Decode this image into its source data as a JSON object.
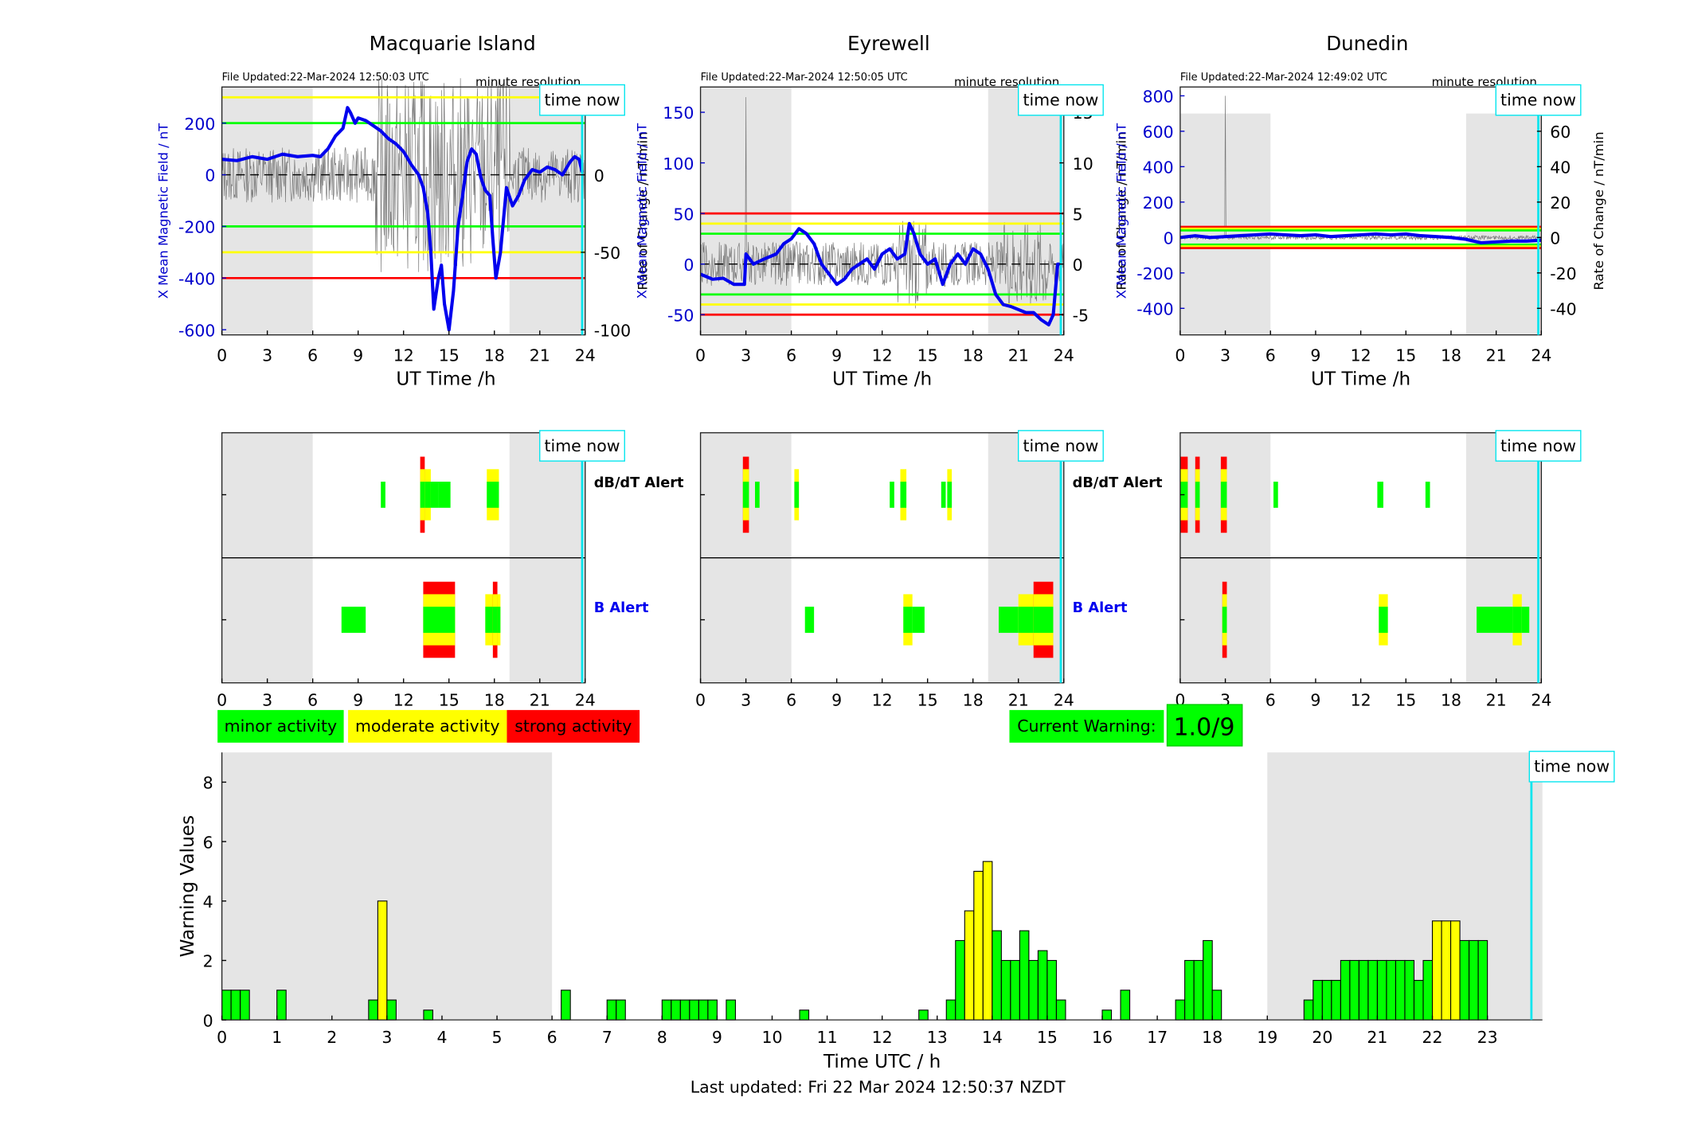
{
  "chart_data": [
    {
      "type": "line",
      "panel": "magnetic-field",
      "title": "Macquarie Island",
      "file_updated": "File Updated:22-Mar-2024 12:50:03 UTC",
      "resolution_label": "minute resolution",
      "time_now_label": "time now",
      "xlabel": "UT Time /h",
      "ylabel_left": "X Mean Magnetic Field / nT",
      "ylabel_right": "Rate of Change / nT/min",
      "xlim": [
        0,
        24
      ],
      "xticks": [
        0,
        3,
        6,
        9,
        12,
        15,
        18,
        21,
        24
      ],
      "ylim_left": [
        -620,
        340
      ],
      "yticks_left": [
        -600,
        -400,
        -200,
        0,
        200
      ],
      "ylim_right": [
        -103.3,
        56.7
      ],
      "yticks_right": [
        -100,
        -50,
        0,
        50
      ],
      "night_shading": [
        [
          0,
          6
        ],
        [
          19,
          24
        ]
      ],
      "time_now": 23.8,
      "thresholds": [
        {
          "value": 300,
          "color": "#ffff00"
        },
        {
          "value": 200,
          "color": "#00ff00"
        },
        {
          "value": -200,
          "color": "#00ff00"
        },
        {
          "value": -300,
          "color": "#ffff00"
        },
        {
          "value": -400,
          "color": "#ff0000"
        }
      ],
      "series": [
        {
          "x": [
            0,
            1,
            2,
            3,
            4,
            5,
            6,
            6.5,
            7,
            7.5,
            8,
            8.3,
            8.5,
            8.8,
            9,
            9.5,
            10,
            10.5,
            11,
            11.5,
            12,
            12.5,
            13,
            13.3,
            13.6,
            13.8,
            14,
            14.3,
            14.5,
            14.7,
            15,
            15.3,
            15.6,
            15.9,
            16.2,
            16.5,
            16.8,
            17.1,
            17.4,
            17.7,
            17.9,
            18.1,
            18.4,
            18.8,
            19.2,
            19.6,
            20,
            20.5,
            21,
            21.5,
            22,
            22.5,
            23,
            23.3,
            23.6,
            23.8
          ],
          "values": [
            60,
            55,
            70,
            60,
            80,
            70,
            75,
            70,
            100,
            150,
            180,
            260,
            240,
            200,
            220,
            210,
            190,
            170,
            140,
            120,
            90,
            40,
            0,
            -50,
            -150,
            -300,
            -520,
            -400,
            -350,
            -500,
            -600,
            -450,
            -200,
            -80,
            50,
            100,
            80,
            -10,
            -60,
            -80,
            -250,
            -400,
            -300,
            -50,
            -120,
            -80,
            -20,
            20,
            10,
            30,
            20,
            0,
            50,
            70,
            60,
            10
          ],
          "color": "#0000ee"
        }
      ]
    },
    {
      "type": "line",
      "panel": "magnetic-field",
      "title": "Eyrewell",
      "file_updated": "File Updated:22-Mar-2024 12:50:05 UTC",
      "resolution_label": "minute resolution",
      "time_now_label": "time now",
      "xlabel": "UT Time /h",
      "ylabel_left": "X Mean Magnetic Field / nT",
      "ylabel_right": "Rate of Change / nT/min",
      "xlim": [
        0,
        24
      ],
      "xticks": [
        0,
        3,
        6,
        9,
        12,
        15,
        18,
        21,
        24
      ],
      "ylim_left": [
        -70,
        175
      ],
      "yticks_left": [
        -50,
        0,
        50,
        100,
        150
      ],
      "ylim_right": [
        -7,
        17.5
      ],
      "yticks_right": [
        -5,
        0,
        5,
        10,
        15
      ],
      "night_shading": [
        [
          0,
          6
        ],
        [
          19,
          24
        ]
      ],
      "time_now": 23.8,
      "thresholds": [
        {
          "value": 50,
          "color": "#ff0000"
        },
        {
          "value": 40,
          "color": "#ffff00"
        },
        {
          "value": 30,
          "color": "#00ff00"
        },
        {
          "value": -30,
          "color": "#00ff00"
        },
        {
          "value": -40,
          "color": "#ffff00"
        },
        {
          "value": -50,
          "color": "#ff0000"
        }
      ],
      "series": [
        {
          "x": [
            0,
            0.8,
            1.5,
            2.2,
            2.9,
            3.0,
            3.5,
            4.2,
            5,
            5.5,
            6,
            6.5,
            7,
            7.5,
            8,
            8.5,
            9,
            9.5,
            10,
            10.5,
            11,
            11.5,
            12,
            12.5,
            13,
            13.5,
            13.8,
            14.1,
            14.5,
            15,
            15.5,
            16,
            16.5,
            17,
            17.5,
            18,
            18.5,
            19,
            19.5,
            20,
            20.5,
            21,
            21.5,
            22,
            22.5,
            23,
            23.3,
            23.6,
            23.8
          ],
          "values": [
            -10,
            -15,
            -14,
            -20,
            -20,
            10,
            0,
            5,
            10,
            20,
            25,
            35,
            30,
            20,
            0,
            -10,
            -20,
            -15,
            -5,
            0,
            5,
            -5,
            10,
            15,
            5,
            10,
            40,
            30,
            10,
            0,
            5,
            -20,
            0,
            10,
            0,
            15,
            10,
            -5,
            -30,
            -40,
            -42,
            -45,
            -48,
            -48,
            -55,
            -60,
            -50,
            0,
            0
          ],
          "color": "#0000ee"
        }
      ]
    },
    {
      "type": "line",
      "panel": "magnetic-field",
      "title": "Dunedin",
      "file_updated": "File Updated:22-Mar-2024 12:49:02 UTC",
      "resolution_label": "minute resolution",
      "time_now_label": "time now",
      "xlabel": "UT Time /h",
      "ylabel_left": "X Mean Magnetic Field / nT",
      "ylabel_right": "Rate of Change / nT/min",
      "xlim": [
        0,
        24
      ],
      "xticks": [
        0,
        3,
        6,
        9,
        12,
        15,
        18,
        21,
        24
      ],
      "ylim_left": [
        -550,
        850
      ],
      "yticks_left": [
        -400,
        -200,
        0,
        200,
        400,
        600,
        800
      ],
      "ylim_right": [
        -55,
        85
      ],
      "yticks_right": [
        -40,
        -20,
        0,
        20,
        40,
        60,
        80
      ],
      "night_shading": [
        [
          0,
          6
        ],
        [
          19,
          24
        ]
      ],
      "time_now": 23.8,
      "thresholds": [
        {
          "value": 60,
          "color": "#ff0000"
        },
        {
          "value": 50,
          "color": "#ffff00"
        },
        {
          "value": 40,
          "color": "#00ff00"
        },
        {
          "value": -40,
          "color": "#00ff00"
        },
        {
          "value": -50,
          "color": "#ffff00"
        },
        {
          "value": -60,
          "color": "#ff0000"
        }
      ],
      "series": [
        {
          "x": [
            0,
            1,
            2,
            3,
            4,
            5,
            6,
            7,
            8,
            9,
            10,
            11,
            12,
            13,
            14,
            15,
            16,
            17,
            18,
            19,
            20,
            21,
            22,
            23,
            24
          ],
          "values": [
            0,
            10,
            0,
            5,
            10,
            15,
            20,
            15,
            10,
            15,
            5,
            10,
            15,
            20,
            15,
            20,
            10,
            5,
            0,
            -10,
            -30,
            -25,
            -20,
            -20,
            -15
          ],
          "color": "#0000ee"
        }
      ]
    },
    {
      "type": "bar",
      "panel": "alerts",
      "station": "Macquarie Island",
      "time_now_label": "time now",
      "xlim": [
        0,
        24
      ],
      "xticks": [
        0,
        3,
        6,
        9,
        12,
        15,
        18,
        21,
        24
      ],
      "night_shading": [
        [
          0,
          6
        ],
        [
          19,
          24
        ]
      ],
      "time_now": 23.8,
      "row_labels": [
        "dB/dT Alert",
        "B Alert"
      ],
      "row_label_colors": [
        "#000000",
        "#0000ee"
      ],
      "dbdt_alerts": [
        {
          "t0": 10.5,
          "t1": 10.8,
          "level": 1
        },
        {
          "t0": 13.1,
          "t1": 13.4,
          "level": 3
        },
        {
          "t0": 13.4,
          "t1": 13.8,
          "level": 2
        },
        {
          "t0": 13.8,
          "t1": 14.3,
          "level": 1
        },
        {
          "t0": 14.3,
          "t1": 15.1,
          "level": 1
        },
        {
          "t0": 17.5,
          "t1": 18.3,
          "level": 2
        }
      ],
      "b_alerts": [
        {
          "t0": 7.9,
          "t1": 9.5,
          "level": 1
        },
        {
          "t0": 13.3,
          "t1": 15.4,
          "level": 3
        },
        {
          "t0": 17.4,
          "t1": 18.4,
          "level": 2
        },
        {
          "t0": 17.9,
          "t1": 18.2,
          "level": 3
        }
      ]
    },
    {
      "type": "bar",
      "panel": "alerts",
      "station": "Eyrewell",
      "time_now_label": "time now",
      "xlim": [
        0,
        24
      ],
      "xticks": [
        0,
        3,
        6,
        9,
        12,
        15,
        18,
        21,
        24
      ],
      "night_shading": [
        [
          0,
          6
        ],
        [
          19,
          24
        ]
      ],
      "time_now": 23.8,
      "row_labels": [
        "dB/dT Alert",
        "B Alert"
      ],
      "row_label_colors": [
        "#000000",
        "#0000ee"
      ],
      "dbdt_alerts": [
        {
          "t0": 2.8,
          "t1": 3.2,
          "level": 3
        },
        {
          "t0": 3.6,
          "t1": 3.9,
          "level": 1
        },
        {
          "t0": 6.2,
          "t1": 6.5,
          "level": 2
        },
        {
          "t0": 12.5,
          "t1": 12.8,
          "level": 1
        },
        {
          "t0": 13.2,
          "t1": 13.6,
          "level": 2
        },
        {
          "t0": 15.9,
          "t1": 16.2,
          "level": 1
        },
        {
          "t0": 16.3,
          "t1": 16.6,
          "level": 2
        }
      ],
      "b_alerts": [
        {
          "t0": 6.9,
          "t1": 7.5,
          "level": 1
        },
        {
          "t0": 13.4,
          "t1": 14.0,
          "level": 2
        },
        {
          "t0": 14.0,
          "t1": 14.8,
          "level": 1
        },
        {
          "t0": 19.7,
          "t1": 21.0,
          "level": 1
        },
        {
          "t0": 21.0,
          "t1": 22.0,
          "level": 2
        },
        {
          "t0": 22.0,
          "t1": 23.3,
          "level": 3
        }
      ]
    },
    {
      "type": "bar",
      "panel": "alerts",
      "station": "Dunedin",
      "time_now_label": "time now",
      "xlim": [
        0,
        24
      ],
      "xticks": [
        0,
        3,
        6,
        9,
        12,
        15,
        18,
        21,
        24
      ],
      "night_shading": [
        [
          0,
          6
        ],
        [
          19,
          24
        ]
      ],
      "time_now": 23.8,
      "row_labels": [],
      "row_label_colors": [],
      "dbdt_alerts": [
        {
          "t0": 0.0,
          "t1": 0.5,
          "level": 3
        },
        {
          "t0": 1.0,
          "t1": 1.3,
          "level": 3
        },
        {
          "t0": 2.7,
          "t1": 3.1,
          "level": 3
        },
        {
          "t0": 6.2,
          "t1": 6.5,
          "level": 1
        },
        {
          "t0": 13.1,
          "t1": 13.5,
          "level": 1
        },
        {
          "t0": 16.3,
          "t1": 16.6,
          "level": 1
        }
      ],
      "b_alerts": [
        {
          "t0": 2.8,
          "t1": 3.1,
          "level": 3
        },
        {
          "t0": 13.2,
          "t1": 13.8,
          "level": 2
        },
        {
          "t0": 19.7,
          "t1": 22.1,
          "level": 1
        },
        {
          "t0": 22.1,
          "t1": 22.7,
          "level": 2
        },
        {
          "t0": 22.7,
          "t1": 23.2,
          "level": 1
        }
      ]
    },
    {
      "type": "bar",
      "panel": "warnings",
      "xlabel": "Time UTC / h",
      "ylabel": "Warning Values",
      "time_now_label": "time now",
      "xlim": [
        0,
        24
      ],
      "xticks": [
        0,
        1,
        2,
        3,
        4,
        5,
        6,
        7,
        8,
        9,
        10,
        11,
        12,
        13,
        14,
        15,
        16,
        17,
        18,
        19,
        20,
        21,
        22,
        23
      ],
      "ylim": [
        0,
        9
      ],
      "yticks": [
        0,
        2,
        4,
        6,
        8
      ],
      "night_shading": [
        [
          0,
          6
        ],
        [
          19,
          24
        ]
      ],
      "time_now": 23.8,
      "bar_width_h": 0.1667,
      "x": [
        0.0833,
        0.25,
        0.4167,
        1.0833,
        2.75,
        2.9167,
        3.0833,
        3.75,
        6.25,
        7.0833,
        7.25,
        8.0833,
        8.25,
        8.4167,
        8.5833,
        8.75,
        8.9167,
        9.25,
        10.5833,
        12.75,
        13.25,
        13.4167,
        13.5833,
        13.75,
        13.9167,
        14.0833,
        14.25,
        14.4167,
        14.5833,
        14.75,
        14.9167,
        15.0833,
        15.25,
        16.0833,
        16.4167,
        17.4167,
        17.5833,
        17.75,
        17.9167,
        18.0833,
        19.75,
        19.9167,
        20.0833,
        20.25,
        20.4167,
        20.5833,
        20.75,
        20.9167,
        21.0833,
        21.25,
        21.4167,
        21.5833,
        21.75,
        21.9167,
        22.0833,
        22.25,
        22.4167,
        22.5833,
        22.75,
        22.9167
      ],
      "values": [
        1,
        1,
        1,
        1,
        0.67,
        4,
        0.67,
        0.33,
        1,
        0.67,
        0.67,
        0.67,
        0.67,
        0.67,
        0.67,
        0.67,
        0.67,
        0.67,
        0.33,
        0.33,
        0.67,
        2.67,
        3.67,
        5,
        5.33,
        3,
        2,
        2,
        3,
        2,
        2.33,
        2,
        0.67,
        0.33,
        1,
        0.67,
        2,
        2,
        2.67,
        1,
        0.67,
        1.33,
        1.33,
        1.33,
        2,
        2,
        2,
        2,
        2,
        2,
        2,
        2,
        1.33,
        2,
        3.33,
        3.33,
        3.33,
        2.67,
        2.67,
        2.67
      ],
      "levels": [
        1,
        1,
        1,
        1,
        1,
        2,
        1,
        1,
        1,
        1,
        1,
        1,
        1,
        1,
        1,
        1,
        1,
        1,
        1,
        1,
        1,
        1,
        2,
        2,
        2,
        1,
        1,
        1,
        1,
        1,
        1,
        1,
        1,
        1,
        1,
        1,
        1,
        1,
        1,
        1,
        1,
        1,
        1,
        1,
        1,
        1,
        1,
        1,
        1,
        1,
        1,
        1,
        1,
        1,
        2,
        2,
        2,
        1,
        1,
        1
      ]
    }
  ],
  "legend": {
    "minor": "minor activity",
    "moderate": "moderate activity",
    "strong": "strong activity"
  },
  "current_warning": {
    "label": "Current Warning:",
    "value": "1.0/9"
  },
  "footer": {
    "last_updated": "Last updated: Fri 22 Mar 2024 12:50:37 NZDT"
  },
  "colors": {
    "minor": "#00ff00",
    "moderate": "#ffff00",
    "strong": "#ff0000",
    "night": "#e5e5e5",
    "time_now_line": "#00e5ee",
    "field_trace": "#0000ee",
    "axis_blue": "#0000cc"
  }
}
